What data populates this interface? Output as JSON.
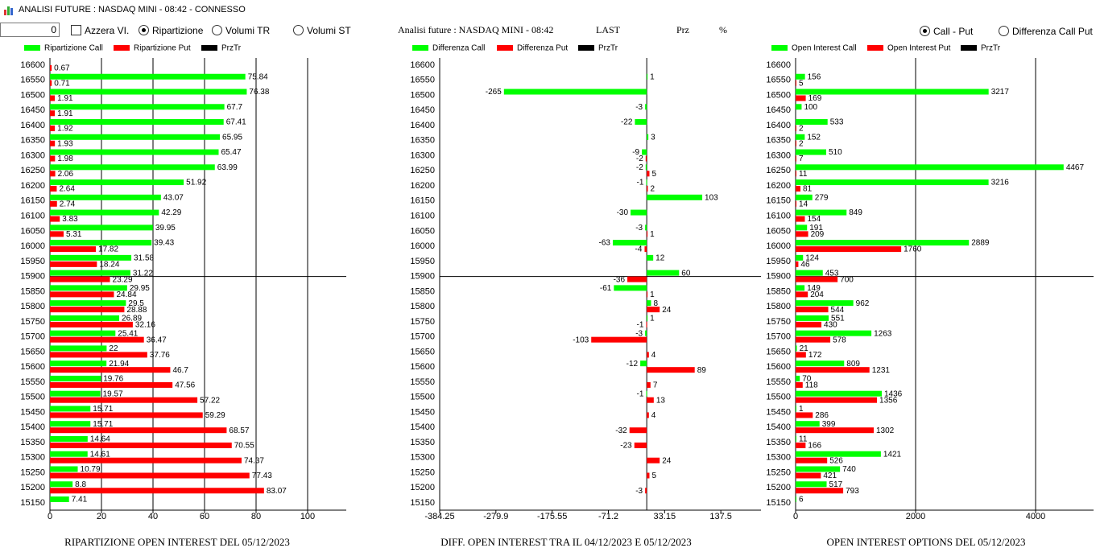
{
  "window": {
    "title": "ANALISI FUTURE : NASDAQ MINI - 08:42 - CONNESSO"
  },
  "controls": {
    "input_value": "0",
    "azzera": "Azzera VI.",
    "ripartizione": "Ripartizione",
    "volumi_tr": "Volumi TR",
    "volumi_st": "Volumi ST",
    "call_put": "Call - Put",
    "differenza": "Differenza Call Put"
  },
  "header": {
    "title": "Analisi future : NASDAQ MINI - 08:42",
    "last": "LAST",
    "prz": "Prz",
    "pct": "%"
  },
  "chart_data": [
    {
      "type": "bar",
      "horizontal": true,
      "title": "RIPARTIZIONE OPEN INTEREST DEL 05/12/2023",
      "categories": [
        "16600",
        "16550",
        "16500",
        "16450",
        "16400",
        "16350",
        "16300",
        "16250",
        "16200",
        "16150",
        "16100",
        "16050",
        "16000",
        "15950",
        "15900",
        "15850",
        "15800",
        "15750",
        "15700",
        "15650",
        "15600",
        "15550",
        "15500",
        "15450",
        "15400",
        "15350",
        "15300",
        "15250",
        "15200",
        "15150"
      ],
      "series": [
        {
          "name": "Ripartizione Call",
          "color": "#00ff00",
          "values": [
            null,
            75.84,
            76.38,
            67.7,
            67.41,
            65.95,
            65.47,
            63.99,
            51.92,
            43.07,
            42.29,
            39.95,
            39.43,
            31.58,
            31.22,
            29.95,
            29.5,
            26.89,
            25.41,
            22,
            21.94,
            19.76,
            19.57,
            15.71,
            15.71,
            14.64,
            14.61,
            10.79,
            8.8,
            7.41
          ]
        },
        {
          "name": "Ripartizione Put",
          "color": "#ff0000",
          "values": [
            0.67,
            0.71,
            1.91,
            1.91,
            1.92,
            1.93,
            1.98,
            2.06,
            2.64,
            2.74,
            3.83,
            5.31,
            17.82,
            18.24,
            23.29,
            24.84,
            28.88,
            32.16,
            36.47,
            37.76,
            46.7,
            47.56,
            57.22,
            59.29,
            68.57,
            70.55,
            74.37,
            77.43,
            83.07,
            null
          ]
        },
        {
          "name": "PrzTr",
          "color": "#000000",
          "values": [
            null,
            null,
            null,
            null,
            null,
            null,
            null,
            null,
            null,
            null,
            null,
            null,
            null,
            null,
            null,
            null,
            null,
            null,
            null,
            null,
            null,
            null,
            null,
            null,
            null,
            null,
            null,
            null,
            null,
            null
          ]
        }
      ],
      "xlim": [
        0,
        115
      ],
      "xticks": [
        0,
        20,
        40,
        60,
        80,
        100
      ],
      "grid": true,
      "highlight_category": "15900"
    },
    {
      "type": "bar",
      "horizontal": true,
      "title": "DIFF. OPEN INTEREST TRA IL 04/12/2023 E 05/12/2023",
      "categories": [
        "16600",
        "16550",
        "16500",
        "16450",
        "16400",
        "16350",
        "16300",
        "16250",
        "16200",
        "16150",
        "16100",
        "16050",
        "16000",
        "15950",
        "15900",
        "15850",
        "15800",
        "15750",
        "15700",
        "15650",
        "15600",
        "15550",
        "15500",
        "15450",
        "15400",
        "15350",
        "15300",
        "15250",
        "15200",
        "15150"
      ],
      "series": [
        {
          "name": "Differenza Call",
          "color": "#00ff00",
          "values": [
            null,
            1,
            -265,
            -3,
            -22,
            3,
            -9,
            -2,
            -1,
            103,
            -30,
            -3,
            -63,
            12,
            60,
            -61,
            8,
            1,
            -3,
            null,
            -12,
            null,
            -1,
            null,
            null,
            null,
            null,
            null,
            null,
            null
          ]
        },
        {
          "name": "Differenza Put",
          "color": "#ff0000",
          "values": [
            null,
            null,
            null,
            null,
            null,
            null,
            -2,
            5,
            2,
            null,
            null,
            1,
            -4,
            null,
            -36,
            1,
            24,
            -1,
            -103,
            4,
            89,
            7,
            13,
            4,
            -32,
            -23,
            24,
            5,
            -3,
            null
          ]
        },
        {
          "name": "PrzTr",
          "color": "#000000",
          "values": [
            null,
            null,
            null,
            null,
            null,
            null,
            null,
            null,
            null,
            null,
            null,
            null,
            null,
            null,
            null,
            null,
            null,
            null,
            null,
            null,
            null,
            null,
            null,
            null,
            null,
            null,
            null,
            null,
            null,
            null
          ]
        }
      ],
      "xlim": [
        -384.25,
        212
      ],
      "xticks": [
        -384.25,
        -279.9,
        -175.55,
        -71.2,
        33.15,
        137.5
      ],
      "grid": false,
      "highlight_category": "15900"
    },
    {
      "type": "bar",
      "horizontal": true,
      "title": "OPEN INTEREST OPTIONS DEL 05/12/2023",
      "categories": [
        "16600",
        "16550",
        "16500",
        "16450",
        "16400",
        "16350",
        "16300",
        "16250",
        "16200",
        "16150",
        "16100",
        "16050",
        "16000",
        "15950",
        "15900",
        "15850",
        "15800",
        "15750",
        "15700",
        "15650",
        "15600",
        "15550",
        "15500",
        "15450",
        "15400",
        "15350",
        "15300",
        "15250",
        "15200",
        "15150"
      ],
      "series": [
        {
          "name": "Open Interest Call",
          "color": "#00ff00",
          "values": [
            null,
            156,
            3217,
            100,
            533,
            152,
            510,
            4467,
            3216,
            279,
            849,
            191,
            2889,
            124,
            453,
            149,
            962,
            551,
            1263,
            21,
            809,
            70,
            1436,
            1,
            399,
            11,
            1421,
            740,
            517,
            6
          ]
        },
        {
          "name": "Open Interest Put",
          "color": "#ff0000",
          "values": [
            null,
            5,
            169,
            null,
            2,
            2,
            7,
            11,
            81,
            14,
            154,
            209,
            1760,
            46,
            700,
            204,
            544,
            430,
            578,
            172,
            1231,
            118,
            1356,
            286,
            1302,
            166,
            526,
            421,
            793,
            null
          ]
        },
        {
          "name": "PrzTr",
          "color": "#000000",
          "values": [
            null,
            null,
            null,
            null,
            null,
            null,
            null,
            null,
            null,
            null,
            null,
            null,
            null,
            null,
            null,
            null,
            null,
            null,
            null,
            null,
            null,
            null,
            null,
            null,
            null,
            null,
            null,
            null,
            null,
            null
          ]
        }
      ],
      "xlim": [
        0,
        4966
      ],
      "xticks": [
        0,
        2000,
        4000
      ],
      "grid": true,
      "highlight_category": "15900"
    }
  ]
}
